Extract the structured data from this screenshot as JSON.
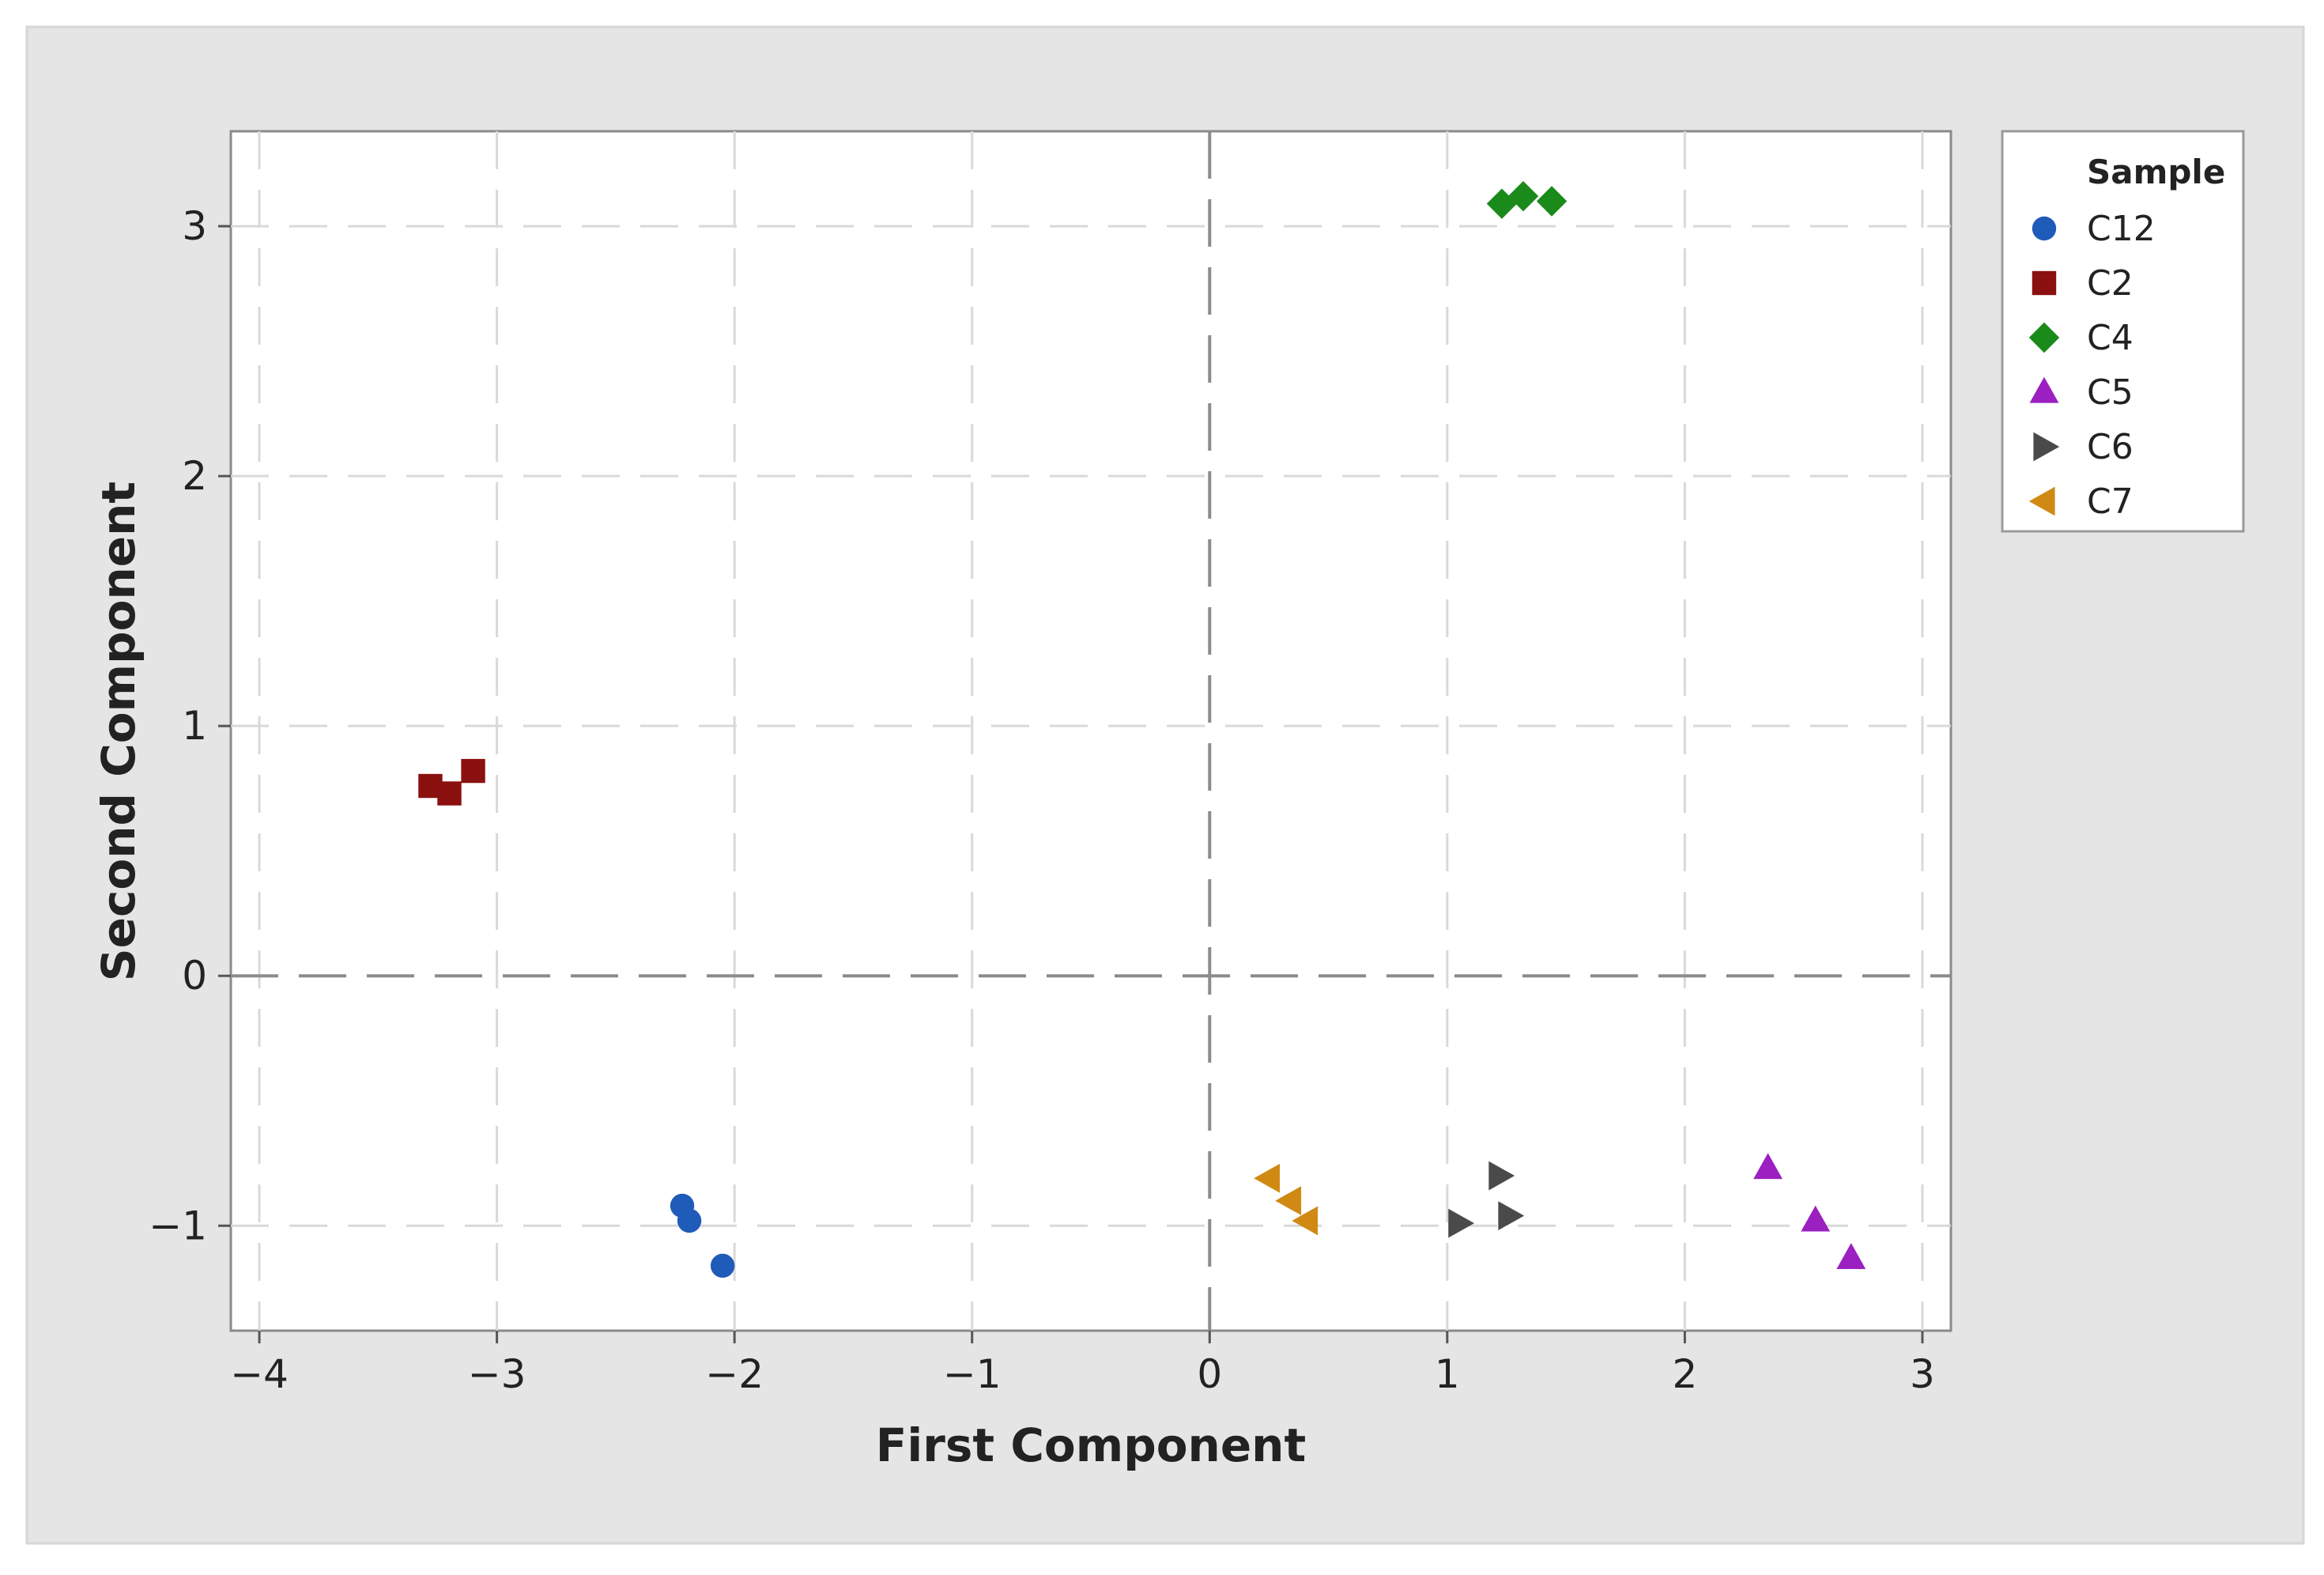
{
  "chart_data": {
    "type": "scatter",
    "title": "",
    "xlabel": "First Component",
    "ylabel": "Second Component",
    "xlim": [
      -4.12,
      3.12
    ],
    "ylim": [
      -1.42,
      3.38
    ],
    "x_ticks": [
      -4,
      -3,
      -2,
      -1,
      0,
      1,
      2,
      3
    ],
    "x_tick_labels": [
      "−4",
      "−3",
      "−2",
      "−1",
      "0",
      "1",
      "2",
      "3"
    ],
    "y_ticks": [
      -1,
      0,
      1,
      2,
      3
    ],
    "y_tick_labels": [
      "−1",
      "0",
      "1",
      "2",
      "3"
    ],
    "grid": true,
    "reference_lines": {
      "x": 0,
      "y": 0
    },
    "legend": {
      "title": "Sample",
      "position": "right"
    },
    "series": [
      {
        "name": "C12",
        "marker": "circle",
        "color": "#1f5bb8",
        "points": [
          [
            -2.22,
            -0.92
          ],
          [
            -2.19,
            -0.98
          ],
          [
            -2.05,
            -1.16
          ]
        ]
      },
      {
        "name": "C2",
        "marker": "square",
        "color": "#8b1010",
        "points": [
          [
            -3.28,
            0.76
          ],
          [
            -3.2,
            0.73
          ],
          [
            -3.1,
            0.82
          ]
        ]
      },
      {
        "name": "C4",
        "marker": "diamond",
        "color": "#1a8a1a",
        "points": [
          [
            1.23,
            3.09
          ],
          [
            1.32,
            3.12
          ],
          [
            1.44,
            3.1
          ]
        ]
      },
      {
        "name": "C5",
        "marker": "triangle-up",
        "color": "#9b1fc1",
        "points": [
          [
            2.35,
            -0.77
          ],
          [
            2.55,
            -0.98
          ],
          [
            2.7,
            -1.13
          ]
        ]
      },
      {
        "name": "C6",
        "marker": "triangle-right",
        "color": "#4a4a4a",
        "points": [
          [
            1.05,
            -0.99
          ],
          [
            1.22,
            -0.8
          ],
          [
            1.26,
            -0.96
          ]
        ]
      },
      {
        "name": "C7",
        "marker": "triangle-left",
        "color": "#d08a14",
        "points": [
          [
            0.25,
            -0.81
          ],
          [
            0.34,
            -0.9
          ],
          [
            0.41,
            -0.98
          ]
        ]
      }
    ]
  }
}
